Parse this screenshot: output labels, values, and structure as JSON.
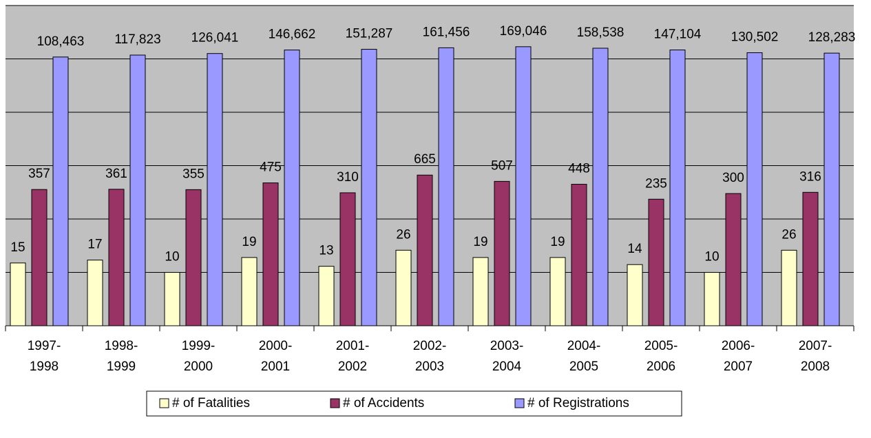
{
  "chart_data": {
    "type": "bar",
    "categories": [
      "1997-1998",
      "1998-1999",
      "1999-2000",
      "2000-2001",
      "2001-2002",
      "2002-2003",
      "2003-2004",
      "2004-2005",
      "2005-2006",
      "2006-2007",
      "2007-2008"
    ],
    "series": [
      {
        "name": "# of Fatalities",
        "color": "#ffffcc",
        "values": [
          15,
          17,
          10,
          19,
          13,
          26,
          19,
          19,
          14,
          10,
          26
        ]
      },
      {
        "name": "# of Accidents",
        "color": "#993366",
        "values": [
          357,
          361,
          355,
          475,
          310,
          665,
          507,
          448,
          235,
          300,
          316
        ]
      },
      {
        "name": "# of Registrations",
        "color": "#9999ff",
        "values": [
          108463,
          117823,
          126041,
          146662,
          151287,
          161456,
          169046,
          158538,
          147104,
          130502,
          128283
        ],
        "value_labels": [
          "108,463",
          "117,823",
          "126,041",
          "146,662",
          "151,287",
          "161,456",
          "169,046",
          "158,538",
          "147,104",
          "130,502",
          "128,283"
        ]
      }
    ],
    "log_scale": true,
    "ylim": [
      1,
      1000000
    ],
    "yticks": [
      1,
      10,
      100,
      1000,
      10000,
      100000,
      1000000
    ],
    "grid": true,
    "legend": "bottom"
  }
}
